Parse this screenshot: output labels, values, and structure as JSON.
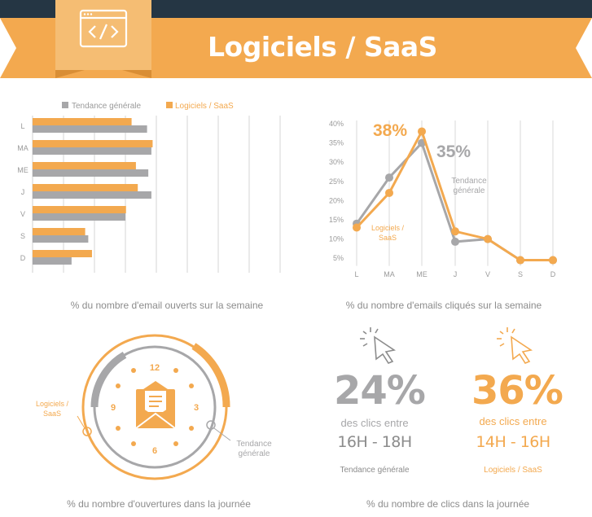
{
  "header": {
    "title": "Logiciels / SaaS",
    "icon": "code-window-icon",
    "colors": {
      "band": "#253644",
      "ribbon": "#f3a94f",
      "ribbon_dark": "#d98e35"
    }
  },
  "colors": {
    "orange": "#f3a94f",
    "gray": "#a7a7a9"
  },
  "chart_data": [
    {
      "type": "bar",
      "orientation": "horizontal",
      "categories": [
        "L",
        "MA",
        "ME",
        "J",
        "V",
        "S",
        "D"
      ],
      "series": [
        {
          "name": "Tendance générale",
          "values": [
            18.5,
            19.2,
            18.7,
            19.2,
            15,
            9,
            6.3
          ],
          "color": "#a7a7a9"
        },
        {
          "name": "Logiciels / SaaS",
          "values": [
            16,
            19.4,
            16.7,
            17,
            15.1,
            8.5,
            9.6
          ],
          "color": "#f3a94f"
        }
      ],
      "x_ticks": [
        "5%",
        "10%",
        "15%",
        "20%",
        "25%",
        "30%",
        "35%",
        "40%"
      ],
      "xlim": [
        0,
        40
      ],
      "grid": true,
      "legend_position": "top",
      "caption": "% du nombre d'email ouverts sur la semaine"
    },
    {
      "type": "line",
      "x": [
        "L",
        "MA",
        "ME",
        "J",
        "V",
        "S",
        "D"
      ],
      "series": [
        {
          "name": "Tendance générale",
          "values": [
            14,
            26,
            35,
            9.3,
            10,
            4.5,
            4.5
          ],
          "color": "#a7a7a9"
        },
        {
          "name": "Logiciels / SaaS",
          "values": [
            13,
            22,
            38,
            12,
            10,
            4.5,
            4.5
          ],
          "color": "#f3a94f"
        }
      ],
      "y_ticks": [
        "40%",
        "35%",
        "30%",
        "25%",
        "20%",
        "15%",
        "10%",
        "5%"
      ],
      "ylim": [
        3,
        40
      ],
      "grid": true,
      "annotations": {
        "peak_saas": "38%",
        "peak_general": "35%",
        "label_general": [
          "Tendance",
          "générale"
        ],
        "label_saas": [
          "Logiciels /",
          "SaaS"
        ]
      },
      "caption": "% du nombre d'emails cliqués sur la semaine"
    },
    {
      "type": "clock",
      "hour_labels": [
        "12",
        "3",
        "6",
        "9"
      ],
      "label_saas": [
        "Logiciels /",
        "SaaS"
      ],
      "label_general": [
        "Tendance",
        "générale"
      ],
      "icon": "envelope-icon",
      "caption": "% du nombre d'ouvertures dans la journée"
    }
  ],
  "clicks": {
    "general": {
      "pct": "24%",
      "line": "des clics entre",
      "hours": "16H - 18H",
      "who": "Tendance générale"
    },
    "saas": {
      "pct": "36%",
      "line": "des clics entre",
      "hours": "14H - 16H",
      "who": "Logiciels / SaaS"
    },
    "caption": "% du nombre de clics dans la journée"
  }
}
